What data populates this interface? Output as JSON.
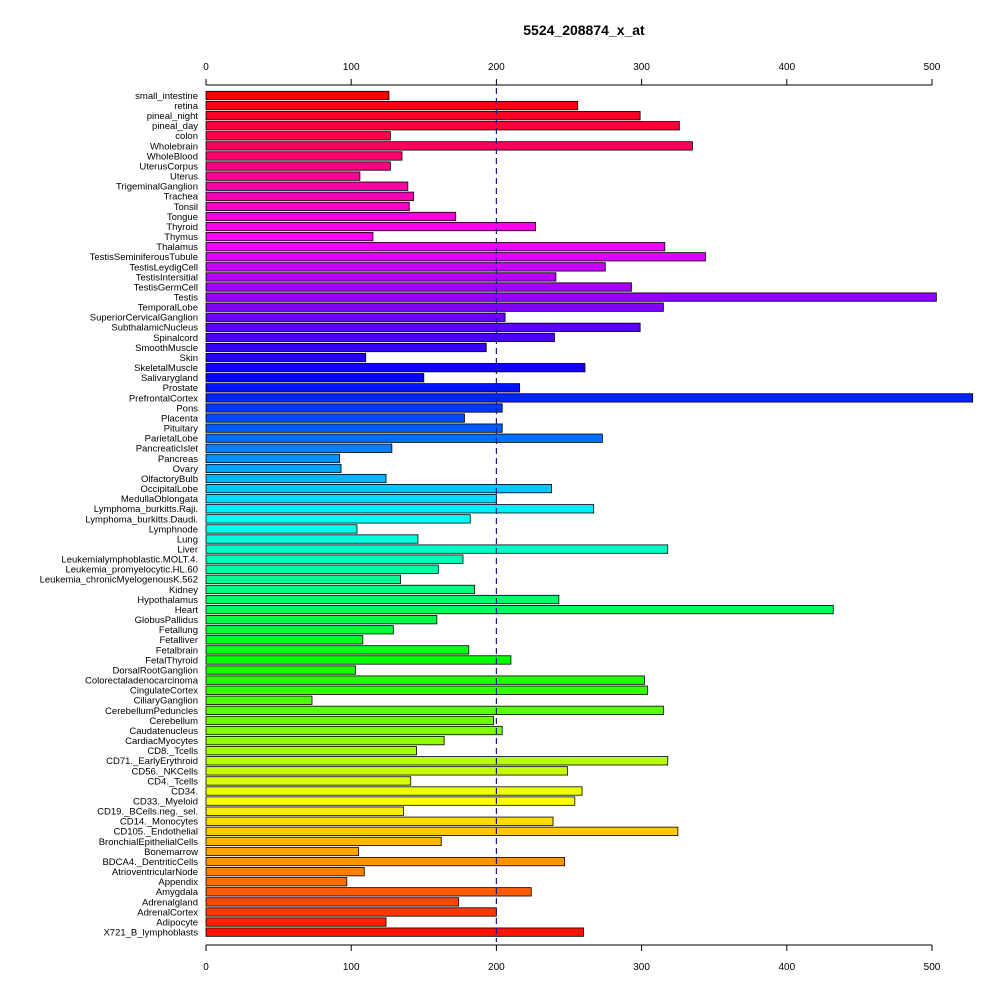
{
  "chart_data": {
    "type": "bar",
    "orientation": "horizontal",
    "title": "5524_208874_x_at",
    "xlabel": "",
    "ylabel": "",
    "xlim": [
      0,
      500
    ],
    "x_ticks": [
      0,
      100,
      200,
      300,
      400,
      500
    ],
    "reference_line": 200,
    "grid": false,
    "categories": [
      "small_intestine",
      "retina",
      "pineal_night",
      "pineal_day",
      "colon",
      "Wholebrain",
      "WholeBlood",
      "UterusCorpus",
      "Uterus",
      "TrigeminalGanglion",
      "Trachea",
      "Tonsil",
      "Tongue",
      "Thyroid",
      "Thymus",
      "Thalamus",
      "TestisSeminiferousTubule",
      "TestisLeydigCell",
      "TestisIntersitial",
      "TestisGermCell",
      "Testis",
      "TemporalLobe",
      "SuperiorCervicalGanglion",
      "SubthalamicNucleus",
      "Spinalcord",
      "SmoothMuscle",
      "Skin",
      "SkeletalMuscle",
      "Salivarygland",
      "Prostate",
      "PrefrontalCortex",
      "Pons",
      "Placenta",
      "Pituitary",
      "ParietalLobe",
      "PancreaticIslet",
      "Pancreas",
      "Ovary",
      "OlfactoryBulb",
      "OccipitalLobe",
      "MedullaOblongata",
      "Lymphoma_burkitts.Raji.",
      "Lymphoma_burkitts.Daudi.",
      "Lymphnode",
      "Lung",
      "Liver",
      "Leukemialymphoblastic.MOLT.4.",
      "Leukemia_promyelocytic.HL.60",
      "Leukemia_chronicMyelogenousK.562",
      "Kidney",
      "Hypothalamus",
      "Heart",
      "GlobusPallidus",
      "Fetallung",
      "Fetalliver",
      "Fetalbrain",
      "FetalThyroid",
      "DorsalRootGanglion",
      "Colorectaladenocarcinoma",
      "CingulateCortex",
      "CiliaryGanglion",
      "CerebellumPeduncles",
      "Cerebellum",
      "Caudatenucleus",
      "CardiacMyocytes",
      "CD8._Tcells",
      "CD71._EarlyErythroid",
      "CD56._NKCells",
      "CD4._Tcells",
      "CD34.",
      "CD33._Myeloid",
      "CD19._BCells.neg._sel.",
      "CD14._Monocytes",
      "CD105._Endothelial",
      "BronchialEpithelialCells",
      "Bonemarrow",
      "BDCA4._DentriticCells",
      "AtrioventricularNode",
      "Appendix",
      "Amygdala",
      "Adrenalgland",
      "AdrenalCortex",
      "Adipocyte",
      "X721_B_lymphoblasts"
    ],
    "values": [
      126,
      256,
      299,
      326,
      127,
      335,
      135,
      127,
      106,
      139,
      143,
      140,
      172,
      227,
      115,
      316,
      344,
      275,
      241,
      293,
      503,
      315,
      206,
      299,
      240,
      193,
      110,
      261,
      150,
      216,
      528,
      204,
      178,
      204,
      273,
      128,
      92,
      93,
      124,
      238,
      200,
      267,
      182,
      104,
      146,
      318,
      177,
      160,
      134,
      185,
      243,
      432,
      159,
      129,
      108,
      181,
      210,
      103,
      302,
      304,
      73,
      315,
      198,
      204,
      164,
      145,
      318,
      249,
      141,
      259,
      254,
      136,
      239,
      325,
      162,
      105,
      247,
      109,
      97,
      224,
      174,
      200,
      124,
      260
    ]
  }
}
